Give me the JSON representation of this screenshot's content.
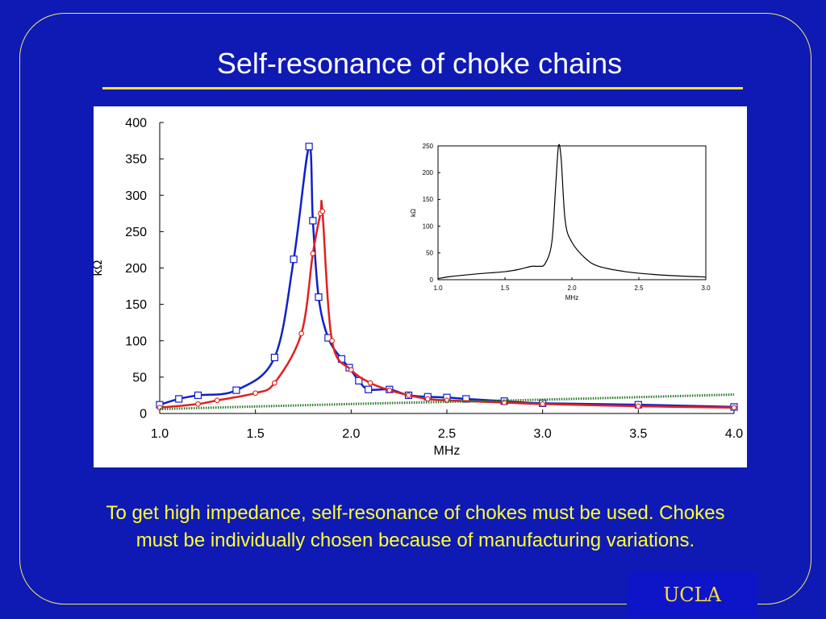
{
  "slide": {
    "title": "Self-resonance of choke chains",
    "caption": "To get high impedance, self-resonance of chokes must be used.  Chokes must be individually chosen because of manufacturing variations.",
    "logo": "UCLA",
    "colors": {
      "background": "#0f1ab4",
      "title": "#ffffff",
      "rule": "#ffe13a",
      "caption": "#ffff33",
      "frame": "#f2e76a"
    }
  },
  "chart_data": [
    {
      "type": "line",
      "title": "",
      "xlabel": "MHz",
      "ylabel": "kΩ",
      "xlim": [
        1.0,
        4.0
      ],
      "ylim": [
        0,
        400
      ],
      "xticks": [
        "1.0",
        "1.5",
        "2.0",
        "2.5",
        "3.0",
        "3.5",
        "4.0"
      ],
      "yticks": [
        "0",
        "50",
        "100",
        "150",
        "200",
        "250",
        "300",
        "350",
        "400"
      ],
      "grid": false,
      "series": [
        {
          "color": "#1020c8",
          "marker": "square",
          "x": [
            1.0,
            1.1,
            1.2,
            1.4,
            1.6,
            1.7,
            1.78,
            1.8,
            1.83,
            1.88,
            1.95,
            1.99,
            2.04,
            2.09,
            2.2,
            2.3,
            2.4,
            2.5,
            2.6,
            2.8,
            3.0,
            3.5,
            4.0
          ],
          "y": [
            12,
            20,
            25,
            32,
            77,
            212,
            367,
            265,
            160,
            104,
            75,
            63,
            45,
            33,
            33,
            25,
            23,
            22,
            20,
            17,
            14,
            12,
            9
          ]
        },
        {
          "color": "#e02020",
          "marker": "circle",
          "x": [
            1.0,
            1.2,
            1.3,
            1.5,
            1.6,
            1.74,
            1.8,
            1.84,
            1.85,
            1.9,
            2.0,
            2.1,
            2.2,
            2.3,
            2.4,
            2.5,
            2.8,
            3.0,
            3.5,
            4.0
          ],
          "y": [
            8,
            13,
            18,
            28,
            42,
            110,
            220,
            275,
            278,
            100,
            60,
            42,
            32,
            25,
            20,
            18,
            15,
            13,
            10,
            8
          ]
        },
        {
          "color": "#2a7a2a",
          "marker": "none",
          "x": [
            1.0,
            2.0,
            3.0,
            4.0
          ],
          "y": [
            6,
            13,
            19,
            26
          ]
        }
      ]
    },
    {
      "type": "line",
      "title": "",
      "xlabel": "MHz",
      "ylabel": "kΩ",
      "xlim": [
        1.0,
        3.0
      ],
      "ylim": [
        0,
        250
      ],
      "xticks": [
        "1.0",
        "1.5",
        "2.0",
        "2.5",
        "3.0"
      ],
      "yticks": [
        "0",
        "50",
        "100",
        "150",
        "200",
        "250"
      ],
      "grid": false,
      "series": [
        {
          "color": "#000000",
          "marker": "none",
          "x": [
            1.0,
            1.1,
            1.3,
            1.5,
            1.6,
            1.7,
            1.75,
            1.8,
            1.85,
            1.88,
            1.9,
            1.92,
            1.95,
            2.0,
            2.1,
            2.2,
            2.4,
            2.6,
            2.8,
            3.0
          ],
          "y": [
            2,
            6,
            11,
            15,
            19,
            25,
            25,
            30,
            70,
            180,
            250,
            225,
            110,
            70,
            40,
            25,
            15,
            10,
            7,
            5
          ]
        }
      ]
    }
  ]
}
